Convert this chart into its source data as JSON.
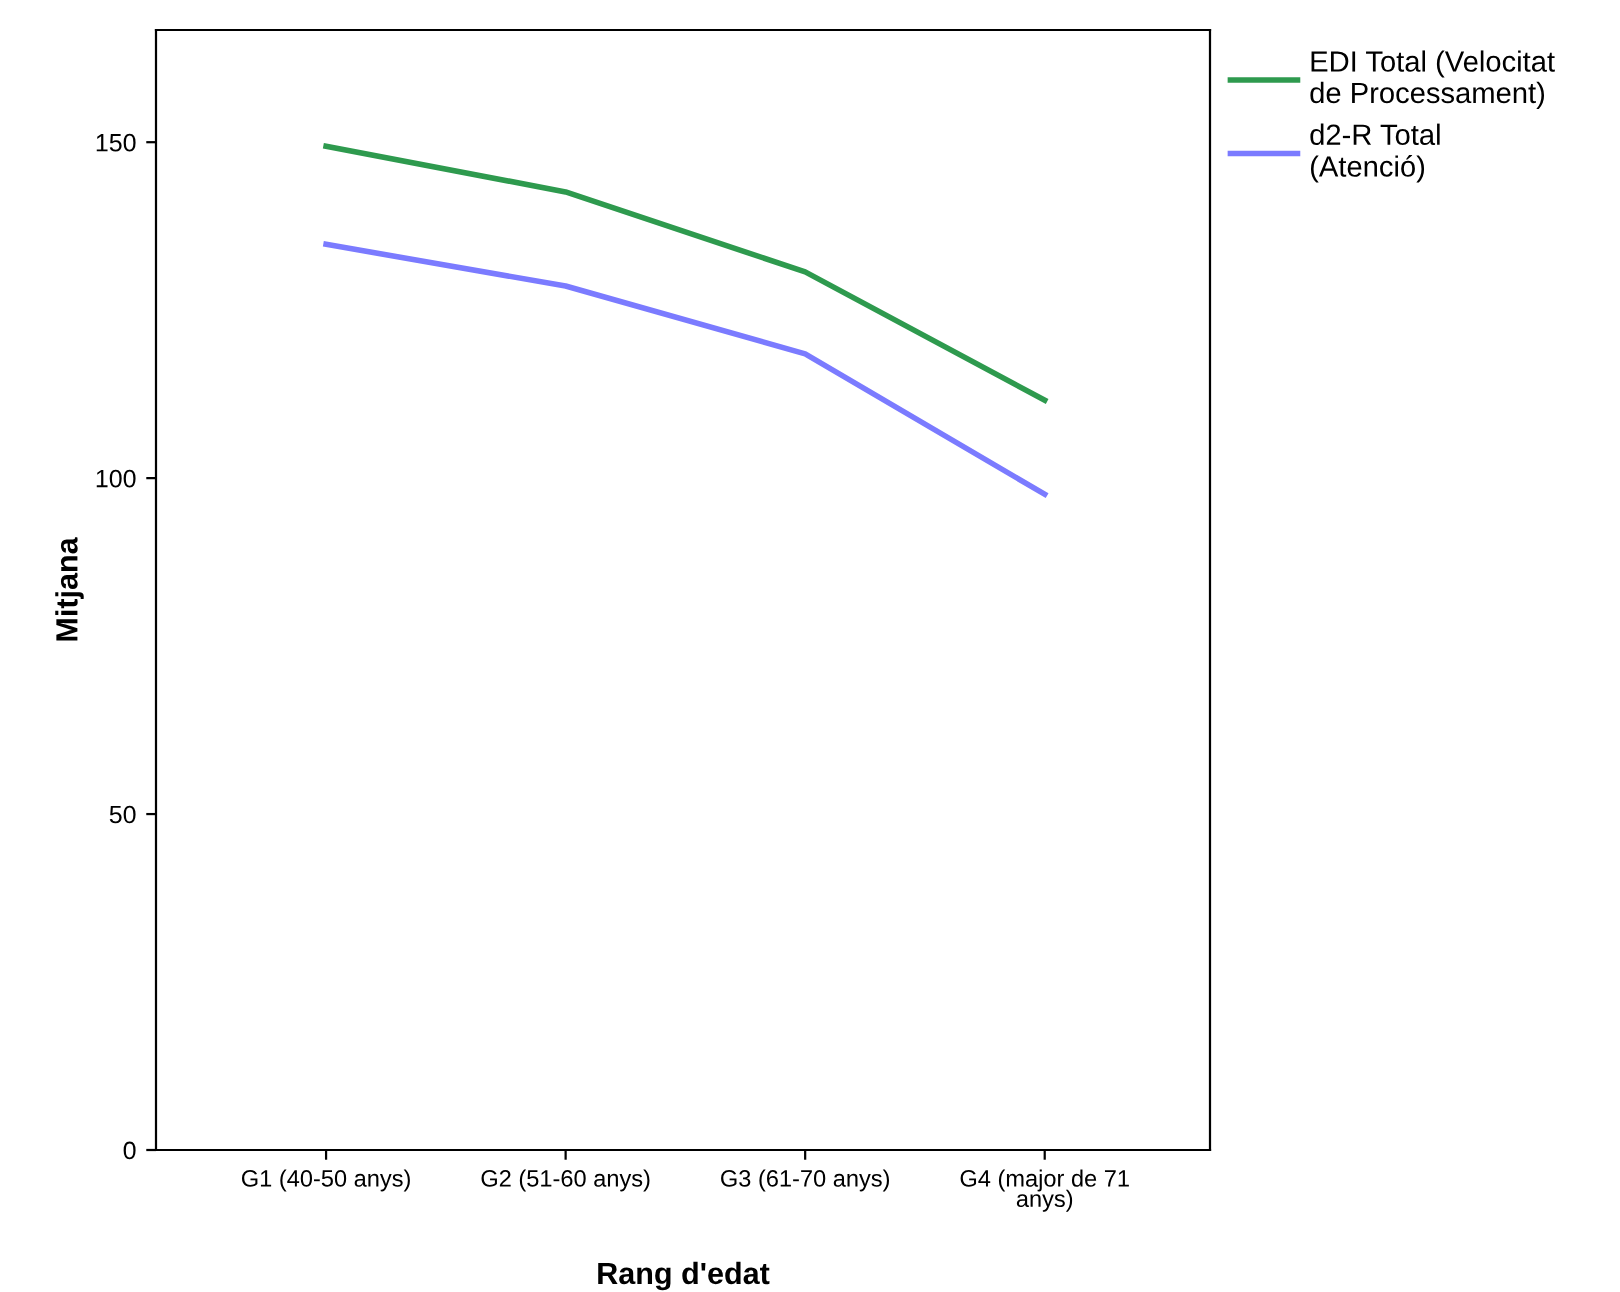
{
  "chart_data": {
    "type": "line",
    "xlabel": "Rang d'edat",
    "ylabel": "Mitjana",
    "categories": [
      "G1 (40-50 anys)",
      "G2 (51-60 anys)",
      "G3 (61-70 anys)",
      "G4 (major de 71\nanys)"
    ],
    "series": [
      {
        "name": "EDI Total (Velocitat\nde Processament)",
        "color": "#2e9a4e",
        "values": [
          149.4,
          142.6,
          130.7,
          111.6
        ]
      },
      {
        "name": "d2-R Total\n(Atenció)",
        "color": "#7b7bff",
        "values": [
          134.8,
          128.6,
          118.5,
          97.6
        ]
      }
    ],
    "ylim": [
      0,
      166.7
    ],
    "yticks": [
      0,
      50,
      100,
      150
    ],
    "grid": false,
    "legend": "top right",
    "marker": "none",
    "line_style": "solid"
  }
}
